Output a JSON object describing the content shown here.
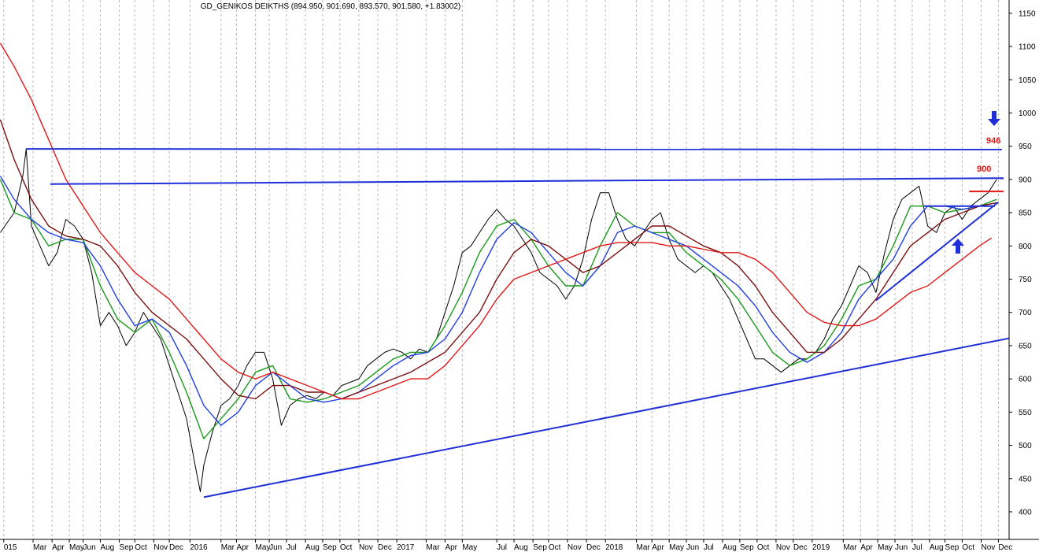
{
  "chart_data": {
    "type": "line",
    "title": "GD_GENIKOS DEIKTHS (894.950, 901.690, 893.570, 901.580, +1.83002)",
    "xlim": [
      1.18,
      59.72
    ],
    "ylim": [
      358.5,
      1170
    ],
    "yticks": [
      400,
      450,
      500,
      550,
      600,
      650,
      700,
      750,
      800,
      850,
      900,
      950,
      1000,
      1050,
      1100,
      1150
    ],
    "xticks": [
      {
        "value": 1.4,
        "label": "015"
      },
      {
        "value": 3.1,
        "label": "Mar"
      },
      {
        "value": 4.2,
        "label": "Apr"
      },
      {
        "value": 5.2,
        "label": "May"
      },
      {
        "value": 6.0,
        "label": "Jun"
      },
      {
        "value": 7.0,
        "label": "Aug"
      },
      {
        "value": 8.1,
        "label": "Sep"
      },
      {
        "value": 9.0,
        "label": "Oct"
      },
      {
        "value": 10.1,
        "label": "Nov"
      },
      {
        "value": 11.0,
        "label": "Dec"
      },
      {
        "value": 12.2,
        "label": "2016"
      },
      {
        "value": 14.0,
        "label": "Mar"
      },
      {
        "value": 14.9,
        "label": "Apr"
      },
      {
        "value": 16.0,
        "label": "May"
      },
      {
        "value": 16.8,
        "label": "Jun"
      },
      {
        "value": 17.8,
        "label": "Jul"
      },
      {
        "value": 18.9,
        "label": "Aug"
      },
      {
        "value": 19.9,
        "label": "Sep"
      },
      {
        "value": 20.9,
        "label": "Oct"
      },
      {
        "value": 22.0,
        "label": "Nov"
      },
      {
        "value": 23.1,
        "label": "Dec"
      },
      {
        "value": 24.2,
        "label": "2017"
      },
      {
        "value": 25.9,
        "label": "Mar"
      },
      {
        "value": 27.0,
        "label": "Apr"
      },
      {
        "value": 28.0,
        "label": "May"
      },
      {
        "value": 30.0,
        "label": "Jul"
      },
      {
        "value": 31.0,
        "label": "Aug"
      },
      {
        "value": 32.1,
        "label": "Sep"
      },
      {
        "value": 33.0,
        "label": "Oct"
      },
      {
        "value": 34.1,
        "label": "Nov"
      },
      {
        "value": 35.2,
        "label": "Dec"
      },
      {
        "value": 36.3,
        "label": "2018"
      },
      {
        "value": 38.1,
        "label": "Mar"
      },
      {
        "value": 39.0,
        "label": "Apr"
      },
      {
        "value": 40.0,
        "label": "May"
      },
      {
        "value": 41.0,
        "label": "Jun"
      },
      {
        "value": 42.0,
        "label": "Jul"
      },
      {
        "value": 43.1,
        "label": "Aug"
      },
      {
        "value": 44.1,
        "label": "Sep"
      },
      {
        "value": 45.1,
        "label": "Oct"
      },
      {
        "value": 46.2,
        "label": "Nov"
      },
      {
        "value": 47.2,
        "label": "Dec"
      },
      {
        "value": 48.3,
        "label": "2019"
      },
      {
        "value": 50.1,
        "label": "Mar"
      },
      {
        "value": 51.1,
        "label": "Apr"
      },
      {
        "value": 52.1,
        "label": "May"
      },
      {
        "value": 53.1,
        "label": "Jun"
      },
      {
        "value": 54.1,
        "label": "Jul"
      },
      {
        "value": 55.1,
        "label": "Aug"
      },
      {
        "value": 56.0,
        "label": "Sep"
      },
      {
        "value": 57.0,
        "label": "Oct"
      },
      {
        "value": 58.1,
        "label": "Nov"
      },
      {
        "value": 59.1,
        "label": "Dec"
      }
    ],
    "grid": true,
    "series": [
      {
        "color": "#000000",
        "x": [
          1.2,
          2,
          2.5,
          2.7,
          3,
          3.5,
          4,
          4.5,
          5,
          5.5,
          6,
          6.5,
          7,
          7.5,
          8,
          8.5,
          9,
          9.5,
          10,
          10.5,
          11,
          11.5,
          12,
          12.5,
          12.8,
          13,
          13.5,
          14,
          14.5,
          15,
          15.5,
          16,
          16.5,
          17,
          17.5,
          18,
          18.5,
          19,
          19.5,
          20,
          20.5,
          21,
          21.5,
          22,
          22.5,
          23,
          23.5,
          24,
          24.5,
          25,
          25.5,
          26,
          26.5,
          27,
          27.5,
          28,
          28.5,
          29,
          29.5,
          30,
          30.5,
          31,
          31.5,
          32,
          32.5,
          33,
          33.5,
          34,
          34.5,
          35,
          35.5,
          36,
          36.5,
          37,
          37.5,
          38,
          38.5,
          39,
          39.5,
          40,
          40.5,
          41,
          41.5,
          42,
          42.5,
          43,
          43.5,
          44,
          44.5,
          45,
          45.5,
          46,
          46.5,
          47,
          47.5,
          48,
          48.5,
          49,
          49.5,
          50,
          50.5,
          51,
          51.5,
          52,
          52.5,
          53,
          53.5,
          54,
          54.5,
          55,
          55.5,
          56,
          56.5,
          57,
          57.5,
          58,
          58.5,
          59
        ],
        "values": [
          820,
          850,
          905,
          946,
          830,
          800,
          770,
          790,
          840,
          830,
          810,
          760,
          680,
          700,
          680,
          650,
          670,
          700,
          680,
          660,
          620,
          580,
          540,
          470,
          430,
          470,
          520,
          560,
          570,
          590,
          620,
          640,
          640,
          600,
          530,
          560,
          570,
          575,
          570,
          580,
          575,
          590,
          595,
          600,
          620,
          630,
          640,
          645,
          640,
          630,
          645,
          640,
          660,
          700,
          740,
          790,
          800,
          820,
          840,
          855,
          840,
          830,
          810,
          790,
          760,
          750,
          740,
          720,
          740,
          780,
          840,
          880,
          880,
          840,
          810,
          800,
          820,
          840,
          850,
          810,
          780,
          770,
          760,
          770,
          760,
          740,
          720,
          690,
          660,
          630,
          630,
          620,
          610,
          620,
          630,
          630,
          640,
          660,
          690,
          710,
          740,
          770,
          760,
          730,
          790,
          840,
          870,
          880,
          890,
          830,
          820,
          850,
          860,
          840,
          860,
          870,
          880,
          900
        ]
      },
      {
        "color": "#1a9a1a",
        "x": [
          1.2,
          2,
          3,
          4,
          5,
          6,
          7,
          8,
          9,
          10,
          11,
          12,
          13,
          14,
          15,
          16,
          17,
          18,
          19,
          20,
          21,
          22,
          23,
          24,
          25,
          26,
          27,
          28,
          29,
          30,
          31,
          32,
          33,
          34,
          35,
          36,
          37,
          38,
          39,
          40,
          41,
          42,
          43,
          44,
          45,
          46,
          47,
          48,
          49,
          50,
          51,
          52,
          53,
          54,
          55,
          56,
          57,
          58,
          59
        ],
        "values": [
          900,
          850,
          840,
          800,
          810,
          810,
          740,
          690,
          670,
          690,
          640,
          580,
          510,
          540,
          570,
          610,
          620,
          570,
          565,
          570,
          580,
          590,
          610,
          630,
          640,
          640,
          680,
          730,
          790,
          830,
          840,
          810,
          770,
          740,
          740,
          800,
          850,
          830,
          820,
          820,
          790,
          770,
          750,
          720,
          680,
          640,
          620,
          630,
          650,
          690,
          740,
          750,
          800,
          860,
          860,
          850,
          855,
          860,
          870
        ]
      },
      {
        "color": "#1f3fe0",
        "x": [
          1.2,
          2,
          3,
          4,
          5,
          6,
          7,
          8,
          9,
          10,
          11,
          12,
          13,
          14,
          15,
          16,
          17,
          18,
          19,
          20,
          21,
          22,
          23,
          24,
          25,
          26,
          27,
          28,
          29,
          30,
          31,
          32,
          33,
          34,
          35,
          36,
          37,
          38,
          39,
          40,
          41,
          42,
          43,
          44,
          45,
          46,
          47,
          48,
          49,
          50,
          51,
          52,
          53,
          54,
          55,
          56,
          57,
          58,
          59
        ],
        "values": [
          905,
          870,
          840,
          820,
          810,
          805,
          770,
          720,
          680,
          690,
          670,
          620,
          560,
          530,
          550,
          590,
          610,
          590,
          570,
          565,
          570,
          580,
          600,
          620,
          635,
          640,
          660,
          700,
          760,
          810,
          835,
          820,
          790,
          760,
          740,
          770,
          820,
          830,
          820,
          810,
          800,
          780,
          760,
          740,
          710,
          670,
          640,
          625,
          640,
          670,
          720,
          750,
          780,
          830,
          860,
          860,
          855,
          860,
          865
        ]
      },
      {
        "color": "#7a1010",
        "x": [
          1.2,
          2,
          3,
          4,
          5,
          6,
          7,
          8,
          9,
          10,
          11,
          12,
          13,
          14,
          15,
          16,
          17,
          18,
          19,
          20,
          21,
          22,
          23,
          24,
          25,
          26,
          27,
          28,
          29,
          30,
          31,
          32,
          33,
          34,
          35,
          36,
          37,
          38,
          39,
          40,
          41,
          42,
          43,
          44,
          45,
          46,
          47,
          48,
          49,
          50,
          51,
          52,
          53,
          54,
          55,
          56,
          57,
          58,
          59
        ],
        "values": [
          990,
          930,
          870,
          830,
          815,
          810,
          800,
          770,
          730,
          700,
          680,
          660,
          630,
          600,
          575,
          570,
          590,
          590,
          580,
          580,
          570,
          580,
          590,
          600,
          610,
          625,
          640,
          670,
          700,
          750,
          790,
          810,
          800,
          780,
          760,
          770,
          790,
          810,
          830,
          830,
          815,
          800,
          790,
          770,
          740,
          700,
          670,
          640,
          640,
          660,
          690,
          720,
          760,
          800,
          820,
          840,
          850,
          860,
          865
        ]
      },
      {
        "color": "#e01818",
        "x": [
          1.2,
          2,
          3,
          4,
          5,
          6,
          7,
          8,
          9,
          10,
          11,
          12,
          13,
          14,
          15,
          16,
          17,
          18,
          19,
          20,
          21,
          22,
          23,
          24,
          25,
          26,
          27,
          28,
          29,
          30,
          31,
          32,
          33,
          34,
          35,
          36,
          37,
          38,
          39,
          40,
          41,
          42,
          43,
          44,
          45,
          46,
          47,
          48,
          49,
          50,
          51,
          52,
          53,
          54,
          55,
          56,
          57,
          58,
          58.7
        ],
        "values": [
          1105,
          1070,
          1020,
          960,
          900,
          860,
          820,
          790,
          760,
          740,
          720,
          690,
          660,
          630,
          610,
          600,
          610,
          600,
          590,
          580,
          570,
          570,
          580,
          590,
          600,
          600,
          620,
          650,
          680,
          720,
          750,
          760,
          770,
          780,
          790,
          800,
          805,
          805,
          805,
          800,
          800,
          795,
          790,
          790,
          780,
          760,
          730,
          700,
          685,
          680,
          680,
          690,
          710,
          730,
          740,
          760,
          780,
          800,
          812
        ]
      }
    ],
    "trendlines": [
      {
        "color": "#1f2fd8",
        "x": [
          2.7,
          59.3
        ],
        "values": [
          946,
          945
        ]
      },
      {
        "color": "#1f2fd8",
        "x": [
          4.1,
          59.4
        ],
        "values": [
          893,
          902
        ]
      },
      {
        "color": "#1f2fd8",
        "x": [
          13.0,
          59.7
        ],
        "values": [
          422,
          661
        ]
      },
      {
        "color": "#1f2fd8",
        "x": [
          52.0,
          59.1
        ],
        "values": [
          718,
          866
        ]
      },
      {
        "color": "#1f2fd8",
        "x": [
          54.8,
          58.9
        ],
        "values": [
          860,
          860
        ]
      },
      {
        "color": "#e01818",
        "x": [
          57.4,
          59.4
        ],
        "values": [
          882,
          882
        ]
      }
    ],
    "annotations": [
      "946",
      "900"
    ]
  }
}
